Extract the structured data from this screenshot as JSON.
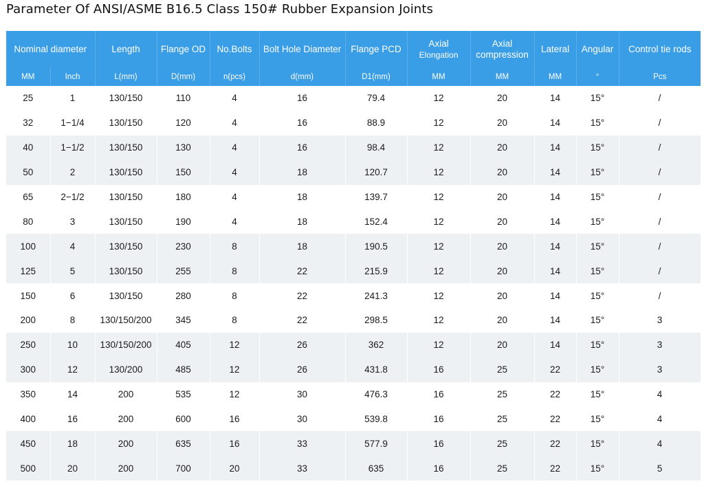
{
  "title": "Parameter Of ANSI/ASME B16.5 Class 150# Rubber Expansion Joints",
  "headers": {
    "nominal_diameter": "Nominal diameter",
    "length": "Length",
    "flange_od": "Flange OD",
    "no_bolts": "No.Bolts",
    "bolt_hole_diameter": "Bolt Hole Diameter",
    "flange_pcd": "Flange PCD",
    "axial_elongation_line1": "Axial",
    "axial_elongation_line2": "Elongation",
    "axial_compression_line1": "Axial",
    "axial_compression_line2": "compression",
    "lateral": "Lateral",
    "angular": "Angular",
    "control_tie_rods": "Control tie rods"
  },
  "units": [
    "MM",
    "Inch",
    "L(mm)",
    "D(mm)",
    "n(pcs)",
    "d(mm)",
    "D1(mm)",
    "MM",
    "MM",
    "MM",
    "°",
    "Pcs"
  ],
  "rows": [
    [
      "25",
      "1",
      "130/150",
      "110",
      "4",
      "16",
      "79.4",
      "12",
      "20",
      "14",
      "15°",
      "/"
    ],
    [
      "32",
      "1−1/4",
      "130/150",
      "120",
      "4",
      "16",
      "88.9",
      "12",
      "20",
      "14",
      "15°",
      "/"
    ],
    [
      "40",
      "1−1/2",
      "130/150",
      "130",
      "4",
      "16",
      "98.4",
      "12",
      "20",
      "14",
      "15°",
      "/"
    ],
    [
      "50",
      "2",
      "130/150",
      "150",
      "4",
      "18",
      "120.7",
      "12",
      "20",
      "14",
      "15°",
      "/"
    ],
    [
      "65",
      "2−1/2",
      "130/150",
      "180",
      "4",
      "18",
      "139.7",
      "12",
      "20",
      "14",
      "15°",
      "/"
    ],
    [
      "80",
      "3",
      "130/150",
      "190",
      "4",
      "18",
      "152.4",
      "12",
      "20",
      "14",
      "15°",
      "/"
    ],
    [
      "100",
      "4",
      "130/150",
      "230",
      "8",
      "18",
      "190.5",
      "12",
      "20",
      "14",
      "15°",
      "/"
    ],
    [
      "125",
      "5",
      "130/150",
      "255",
      "8",
      "22",
      "215.9",
      "12",
      "20",
      "14",
      "15°",
      "/"
    ],
    [
      "150",
      "6",
      "130/150",
      "280",
      "8",
      "22",
      "241.3",
      "12",
      "20",
      "14",
      "15°",
      "/"
    ],
    [
      "200",
      "8",
      "130/150/200",
      "345",
      "8",
      "22",
      "298.5",
      "12",
      "20",
      "14",
      "15°",
      "3"
    ],
    [
      "250",
      "10",
      "130/150/200",
      "405",
      "12",
      "26",
      "362",
      "12",
      "20",
      "14",
      "15°",
      "3"
    ],
    [
      "300",
      "12",
      "130/200",
      "485",
      "12",
      "26",
      "431.8",
      "16",
      "25",
      "22",
      "15°",
      "3"
    ],
    [
      "350",
      "14",
      "200",
      "535",
      "12",
      "30",
      "476.3",
      "16",
      "25",
      "22",
      "15°",
      "4"
    ],
    [
      "400",
      "16",
      "200",
      "600",
      "16",
      "30",
      "539.8",
      "16",
      "25",
      "22",
      "15°",
      "4"
    ],
    [
      "450",
      "18",
      "200",
      "635",
      "16",
      "33",
      "577.9",
      "16",
      "25",
      "22",
      "15°",
      "4"
    ],
    [
      "500",
      "20",
      "200",
      "700",
      "20",
      "33",
      "635",
      "16",
      "25",
      "22",
      "15°",
      "5"
    ]
  ],
  "colors": {
    "header_bg": "#3a9ee6",
    "header_text": "#ffffff",
    "shaded_row_bg": "#eef1f4",
    "plain_row_bg": "#ffffff"
  }
}
